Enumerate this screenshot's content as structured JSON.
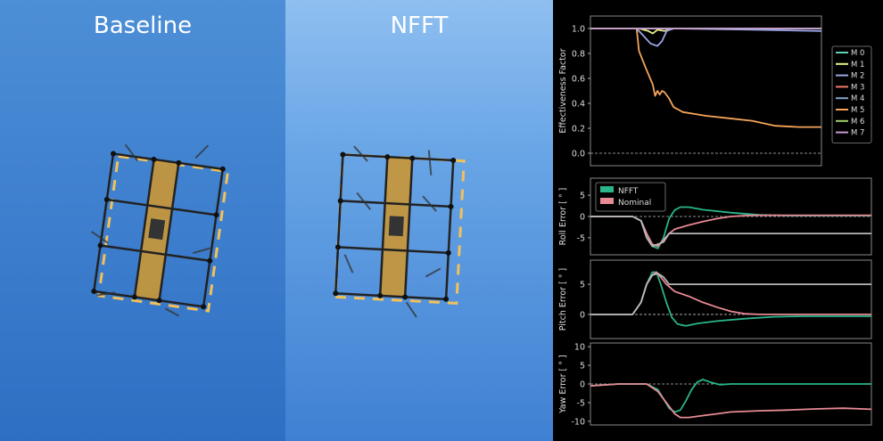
{
  "left_video": {
    "title": "Baseline"
  },
  "mid_video": {
    "title": "NFFT"
  },
  "colors": {
    "M0": "#5fd1b3",
    "M1": "#e8f08a",
    "M2": "#9aa6e8",
    "M3": "#f47c6a",
    "M4": "#7fa6c9",
    "M5": "#f5a55a",
    "M6": "#a3d16a",
    "M7": "#c79ad0",
    "NFFT": "#2ab58a",
    "Nominal": "#e88a94",
    "Baseline": "#b8b8b8",
    "dashed_frame": "#f2c15a",
    "drone_plate": "#c79638"
  },
  "chart_data": [
    {
      "type": "line",
      "ylabel": "Effectiveness Factor",
      "ylim": [
        -0.1,
        1.1
      ],
      "yticks": [
        1.0,
        0.8,
        0.6,
        0.4,
        0.2,
        0.0
      ],
      "ytick_labels": [
        "1.0",
        "0.8",
        "0.6",
        "0.4",
        "0.2",
        "0.0"
      ],
      "zero_line": true,
      "legend_position": "right",
      "series": [
        {
          "name": "M 0",
          "x": [
            0,
            100
          ],
          "y": [
            1.0,
            1.0
          ]
        },
        {
          "name": "M 1",
          "x": [
            0,
            21,
            25,
            27,
            29,
            32,
            36,
            100
          ],
          "y": [
            1.0,
            1.0,
            0.98,
            0.96,
            0.99,
            0.98,
            1.0,
            1.0
          ]
        },
        {
          "name": "M 2",
          "x": [
            0,
            20,
            23,
            26,
            29,
            31,
            33,
            36,
            70,
            100
          ],
          "y": [
            1.0,
            1.0,
            0.94,
            0.88,
            0.86,
            0.9,
            0.98,
            1.0,
            0.99,
            0.98
          ]
        },
        {
          "name": "M 3",
          "x": [
            0,
            100
          ],
          "y": [
            1.0,
            1.0
          ]
        },
        {
          "name": "M 4",
          "x": [
            0,
            100
          ],
          "y": [
            1.0,
            1.0
          ]
        },
        {
          "name": "M 5",
          "x": [
            0,
            20,
            21,
            24,
            27,
            28,
            29,
            30,
            31,
            32,
            34,
            36,
            40,
            50,
            60,
            70,
            80,
            90,
            100
          ],
          "y": [
            1.0,
            1.0,
            0.82,
            0.68,
            0.55,
            0.46,
            0.5,
            0.47,
            0.5,
            0.49,
            0.44,
            0.37,
            0.33,
            0.3,
            0.28,
            0.26,
            0.22,
            0.21,
            0.21
          ]
        },
        {
          "name": "M 6",
          "x": [
            0,
            100
          ],
          "y": [
            1.0,
            1.0
          ]
        },
        {
          "name": "M 7",
          "x": [
            0,
            100
          ],
          "y": [
            1.0,
            1.0
          ]
        }
      ]
    },
    {
      "type": "line",
      "ylabel": "Roll Error [ ° ]",
      "ylim": [
        -9,
        9
      ],
      "yticks": [
        5,
        0,
        -5
      ],
      "ytick_labels": [
        "5",
        "0",
        "-5"
      ],
      "zero_line": true,
      "legend_position": "top-left",
      "series": [
        {
          "name": "NFFT",
          "x": [
            0,
            8,
            15,
            18,
            20,
            22,
            24,
            26,
            28,
            30,
            32,
            35,
            40,
            50,
            60,
            70,
            100
          ],
          "y": [
            0,
            0,
            0,
            -1,
            -4,
            -7,
            -7.5,
            -5,
            -0.5,
            1.5,
            2.2,
            2.2,
            1.6,
            0.9,
            0.4,
            0.2,
            0.2
          ]
        },
        {
          "name": "Nominal",
          "x": [
            0,
            8,
            15,
            18,
            20,
            22,
            24,
            26,
            28,
            30,
            35,
            40,
            45,
            50,
            55,
            60,
            100
          ],
          "y": [
            0,
            0,
            0,
            -1,
            -4,
            -6.5,
            -7,
            -5.5,
            -4,
            -3,
            -2,
            -1.2,
            -0.5,
            0,
            0.2,
            0.3,
            0.3
          ]
        },
        {
          "name": "",
          "x": [
            0,
            8,
            15,
            18,
            20,
            22,
            24,
            26,
            28,
            100
          ],
          "y": [
            0,
            0,
            0,
            -1,
            -5,
            -7,
            -6.5,
            -6,
            -4,
            -4
          ]
        }
      ]
    },
    {
      "type": "line",
      "ylabel": "Pitch Error [ ° ]",
      "ylim": [
        -4,
        9
      ],
      "yticks": [
        5,
        0
      ],
      "ytick_labels": [
        "5",
        "0"
      ],
      "zero_line": true,
      "legend_position": "none",
      "series": [
        {
          "name": "NFFT",
          "x": [
            0,
            15,
            18,
            20,
            22,
            23.5,
            25,
            27,
            29,
            31,
            34,
            38,
            45,
            55,
            65,
            75,
            100
          ],
          "y": [
            0,
            0,
            2,
            5,
            7,
            7,
            5,
            2,
            -0.5,
            -1.6,
            -1.9,
            -1.5,
            -1.1,
            -0.7,
            -0.4,
            -0.3,
            -0.3
          ]
        },
        {
          "name": "Nominal",
          "x": [
            0,
            15,
            18,
            20,
            22,
            23.5,
            25,
            27,
            30,
            35,
            40,
            45,
            50,
            55,
            60,
            70,
            100
          ],
          "y": [
            0,
            0,
            2,
            5,
            6.5,
            7,
            6.2,
            5,
            3.8,
            3,
            2,
            1.2,
            0.5,
            0.1,
            0,
            0,
            0
          ]
        },
        {
          "name": "",
          "x": [
            0,
            15,
            18,
            20,
            22,
            24,
            26,
            28,
            100
          ],
          "y": [
            0,
            0,
            2,
            5,
            6.5,
            6.8,
            6.2,
            5,
            5
          ]
        }
      ]
    },
    {
      "type": "line",
      "ylabel": "Yaw Error [ ° ]",
      "ylim": [
        -11,
        11
      ],
      "yticks": [
        10,
        5,
        0,
        -5,
        -10
      ],
      "ytick_labels": [
        "10",
        "5",
        "0",
        "-5",
        "-10"
      ],
      "zero_line": true,
      "legend_position": "none",
      "series": [
        {
          "name": "NFFT",
          "x": [
            0,
            10,
            20,
            24,
            26,
            28,
            30,
            32,
            34,
            36,
            38,
            40,
            43,
            46,
            50,
            60,
            100
          ],
          "y": [
            -0.5,
            0,
            0,
            -1.5,
            -4,
            -6.5,
            -7.5,
            -7,
            -4.5,
            -1.5,
            0.5,
            1.2,
            0.4,
            -0.2,
            0,
            0,
            0
          ]
        },
        {
          "name": "Nominal",
          "x": [
            0,
            10,
            20,
            24,
            28,
            30,
            32,
            35,
            40,
            45,
            50,
            60,
            70,
            80,
            90,
            100
          ],
          "y": [
            -0.5,
            0,
            0,
            -2,
            -6,
            -8,
            -9,
            -9,
            -8.5,
            -8,
            -7.5,
            -7.2,
            -7,
            -6.7,
            -6.5,
            -6.8
          ]
        }
      ]
    }
  ]
}
